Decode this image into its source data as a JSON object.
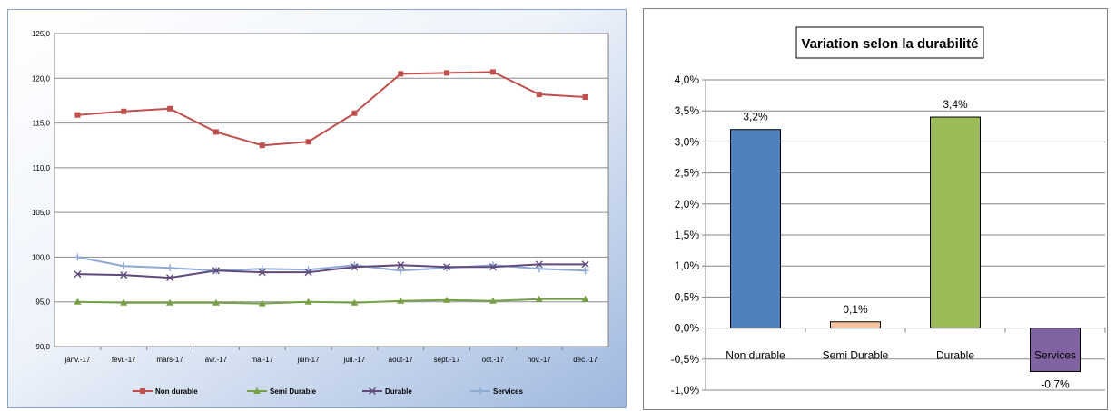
{
  "chart_data": [
    {
      "type": "line",
      "title": "",
      "xlabel": "",
      "ylabel": "",
      "categories": [
        "janv.-17",
        "févr.-17",
        "mars-17",
        "avr.-17",
        "mai-17",
        "juin-17",
        "juil.-17",
        "août-17",
        "sept.-17",
        "oct.-17",
        "nov.-17",
        "déc.-17"
      ],
      "ylim": [
        90,
        125
      ],
      "yticks": [
        "90,0",
        "95,0",
        "100,0",
        "105,0",
        "110,0",
        "115,0",
        "120,0",
        "125,0"
      ],
      "grid": true,
      "legend_position": "bottom",
      "series": [
        {
          "name": "Non durable",
          "color": "#c0504d",
          "marker": "square",
          "values": [
            115.9,
            116.3,
            116.6,
            114.0,
            112.5,
            112.9,
            116.1,
            120.5,
            120.6,
            120.7,
            118.2,
            117.9
          ]
        },
        {
          "name": "Semi Durable",
          "color": "#77a046",
          "marker": "triangle",
          "values": [
            95.0,
            94.9,
            94.9,
            94.9,
            94.8,
            95.0,
            94.9,
            95.1,
            95.2,
            95.1,
            95.3,
            95.3
          ]
        },
        {
          "name": "Durable",
          "color": "#604a7b",
          "marker": "x",
          "values": [
            98.1,
            98.0,
            97.7,
            98.5,
            98.3,
            98.3,
            98.9,
            99.1,
            98.9,
            98.9,
            99.2,
            99.2
          ]
        },
        {
          "name": "Services",
          "color": "#8fa9d5",
          "marker": "plus",
          "values": [
            100.0,
            99.0,
            98.8,
            98.5,
            98.7,
            98.6,
            99.1,
            98.5,
            98.8,
            99.1,
            98.7,
            98.5
          ]
        }
      ]
    },
    {
      "type": "bar",
      "title": "Variation selon la durabilité",
      "xlabel": "",
      "ylabel": "",
      "categories": [
        "Non durable",
        "Semi Durable",
        "Durable",
        "Services"
      ],
      "values": [
        3.2,
        0.1,
        3.4,
        -0.7
      ],
      "data_labels": [
        "3,2%",
        "0,1%",
        "3,4%",
        "-0,7%"
      ],
      "colors": [
        "#4f81bd",
        "#f7c39c",
        "#9bbb59",
        "#8064a2"
      ],
      "ylim": [
        -1.0,
        4.0
      ],
      "yticks": [
        "-1,0%",
        "-0,5%",
        "0,0%",
        "0,5%",
        "1,0%",
        "1,5%",
        "2,0%",
        "2,5%",
        "3,0%",
        "3,5%",
        "4,0%"
      ],
      "grid": true,
      "legend": false
    }
  ]
}
